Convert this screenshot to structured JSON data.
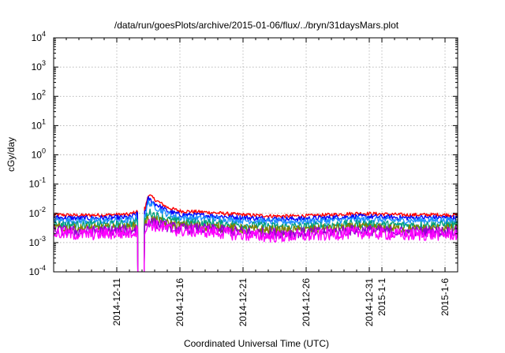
{
  "chart_data": {
    "type": "line",
    "title": "/data/run/goesPlots/archive/2015-01-06/flux/../bryn/31daysMars.plot",
    "xlabel": "Coordinated Universal Time (UTC)",
    "ylabel": "cGy/day",
    "yscale": "log",
    "ylim": [
      0.0001,
      10000
    ],
    "y_ticks": [
      {
        "value": 0.0001,
        "base": "10",
        "exp": "-4"
      },
      {
        "value": 0.001,
        "base": "10",
        "exp": "-3"
      },
      {
        "value": 0.01,
        "base": "10",
        "exp": "-2"
      },
      {
        "value": 0.1,
        "base": "10",
        "exp": "-1"
      },
      {
        "value": 1,
        "base": "10",
        "exp": "0"
      },
      {
        "value": 10,
        "base": "10",
        "exp": "1"
      },
      {
        "value": 100,
        "base": "10",
        "exp": "2"
      },
      {
        "value": 1000,
        "base": "10",
        "exp": "3"
      },
      {
        "value": 10000,
        "base": "10",
        "exp": "4"
      }
    ],
    "xlim": [
      "2014-12-06",
      "2015-01-07"
    ],
    "x_ticks": [
      {
        "date": "2014-12-11",
        "label": "2014-12-11"
      },
      {
        "date": "2014-12-16",
        "label": "2014-12-16"
      },
      {
        "date": "2014-12-21",
        "label": "2014-12-21"
      },
      {
        "date": "2014-12-26",
        "label": "2014-12-26"
      },
      {
        "date": "2014-12-31",
        "label": "2014-12-31"
      },
      {
        "date": "2015-01-01",
        "label": "2015-1-1"
      },
      {
        "date": "2015-01-06",
        "label": "2015-1-6"
      }
    ],
    "grid": true,
    "legend": "none",
    "data_gap": {
      "start": "2014-12-12T16:00",
      "end": "2014-12-13T04:00"
    },
    "series": [
      {
        "color": "#ff0000",
        "points": [
          [
            "2014-12-06",
            0.009
          ],
          [
            "2014-12-08",
            0.0085
          ],
          [
            "2014-12-10",
            0.0088
          ],
          [
            "2014-12-12",
            0.0092
          ],
          [
            "2014-12-13T06:00",
            0.015
          ],
          [
            "2014-12-13T12:00",
            0.045
          ],
          [
            "2014-12-14",
            0.03
          ],
          [
            "2014-12-15",
            0.016
          ],
          [
            "2014-12-16",
            0.012
          ],
          [
            "2014-12-18",
            0.011
          ],
          [
            "2014-12-20",
            0.0095
          ],
          [
            "2014-12-22",
            0.0085
          ],
          [
            "2014-12-24",
            0.008
          ],
          [
            "2014-12-26",
            0.0082
          ],
          [
            "2014-12-28",
            0.009
          ],
          [
            "2014-12-30",
            0.01
          ],
          [
            "2015-01-01",
            0.0095
          ],
          [
            "2015-01-03",
            0.0088
          ],
          [
            "2015-01-05",
            0.009
          ],
          [
            "2015-01-07",
            0.0088
          ]
        ]
      },
      {
        "color": "#0000ff",
        "points": [
          [
            "2014-12-06",
            0.0072
          ],
          [
            "2014-12-08",
            0.0068
          ],
          [
            "2014-12-10",
            0.007
          ],
          [
            "2014-12-12",
            0.0073
          ],
          [
            "2014-12-13T06:00",
            0.012
          ],
          [
            "2014-12-13T12:00",
            0.032
          ],
          [
            "2014-12-14",
            0.022
          ],
          [
            "2014-12-15",
            0.012
          ],
          [
            "2014-12-16",
            0.009
          ],
          [
            "2014-12-18",
            0.0085
          ],
          [
            "2014-12-20",
            0.0075
          ],
          [
            "2014-12-22",
            0.0068
          ],
          [
            "2014-12-24",
            0.0064
          ],
          [
            "2014-12-26",
            0.0066
          ],
          [
            "2014-12-28",
            0.0072
          ],
          [
            "2014-12-30",
            0.0078
          ],
          [
            "2015-01-01",
            0.0075
          ],
          [
            "2015-01-03",
            0.007
          ],
          [
            "2015-01-05",
            0.0072
          ],
          [
            "2015-01-07",
            0.007
          ]
        ]
      },
      {
        "color": "#1e90ff",
        "points": [
          [
            "2014-12-06",
            0.0058
          ],
          [
            "2014-12-08",
            0.0055
          ],
          [
            "2014-12-10",
            0.0056
          ],
          [
            "2014-12-12",
            0.0058
          ],
          [
            "2014-12-13T06:00",
            0.009
          ],
          [
            "2014-12-13T12:00",
            0.024
          ],
          [
            "2014-12-14",
            0.017
          ],
          [
            "2014-12-15",
            0.0095
          ],
          [
            "2014-12-16",
            0.0072
          ],
          [
            "2014-12-18",
            0.0068
          ],
          [
            "2014-12-20",
            0.006
          ],
          [
            "2014-12-22",
            0.0054
          ],
          [
            "2014-12-24",
            0.0051
          ],
          [
            "2014-12-26",
            0.0053
          ],
          [
            "2014-12-28",
            0.0057
          ],
          [
            "2014-12-30",
            0.0062
          ],
          [
            "2015-01-01",
            0.006
          ],
          [
            "2015-01-03",
            0.0056
          ],
          [
            "2015-01-05",
            0.0058
          ],
          [
            "2015-01-07",
            0.0056
          ]
        ]
      },
      {
        "color": "#00a080",
        "points": [
          [
            "2014-12-06",
            0.0042
          ],
          [
            "2014-12-08",
            0.004
          ],
          [
            "2014-12-10",
            0.0041
          ],
          [
            "2014-12-12",
            0.0043
          ],
          [
            "2014-12-13T06:00",
            0.006
          ],
          [
            "2014-12-13T12:00",
            0.011
          ],
          [
            "2014-12-14",
            0.009
          ],
          [
            "2014-12-15",
            0.0062
          ],
          [
            "2014-12-16",
            0.005
          ],
          [
            "2014-12-18",
            0.0047
          ],
          [
            "2014-12-20",
            0.0042
          ],
          [
            "2014-12-22",
            0.0038
          ],
          [
            "2014-12-24",
            0.0035
          ],
          [
            "2014-12-26",
            0.0036
          ],
          [
            "2014-12-28",
            0.004
          ],
          [
            "2014-12-30",
            0.0044
          ],
          [
            "2015-01-01",
            0.0042
          ],
          [
            "2015-01-03",
            0.0039
          ],
          [
            "2015-01-05",
            0.0041
          ],
          [
            "2015-01-07",
            0.004
          ]
        ]
      },
      {
        "color": "#808000",
        "points": [
          [
            "2014-12-06",
            0.0032
          ],
          [
            "2014-12-08",
            0.003
          ],
          [
            "2014-12-10",
            0.0031
          ],
          [
            "2014-12-12",
            0.0032
          ],
          [
            "2014-12-13T06:00",
            0.0045
          ],
          [
            "2014-12-13T12:00",
            0.0065
          ],
          [
            "2014-12-14",
            0.0058
          ],
          [
            "2014-12-15",
            0.0045
          ],
          [
            "2014-12-16",
            0.0038
          ],
          [
            "2014-12-18",
            0.0036
          ],
          [
            "2014-12-20",
            0.0031
          ],
          [
            "2014-12-22",
            0.0028
          ],
          [
            "2014-12-24",
            0.0026
          ],
          [
            "2014-12-26",
            0.0027
          ],
          [
            "2014-12-28",
            0.003
          ],
          [
            "2014-12-30",
            0.0033
          ],
          [
            "2015-01-01",
            0.0031
          ],
          [
            "2015-01-03",
            0.0029
          ],
          [
            "2015-01-05",
            0.003
          ],
          [
            "2015-01-07",
            0.003
          ]
        ]
      },
      {
        "color": "#9400d3",
        "points": [
          [
            "2014-12-06",
            0.0026
          ],
          [
            "2014-12-08",
            0.0024
          ],
          [
            "2014-12-10",
            0.0025
          ],
          [
            "2014-12-12",
            0.0026
          ],
          [
            "2014-12-13T06:00",
            0.0036
          ],
          [
            "2014-12-13T12:00",
            0.0052
          ],
          [
            "2014-12-14",
            0.0046
          ],
          [
            "2014-12-15",
            0.0036
          ],
          [
            "2014-12-16",
            0.003
          ],
          [
            "2014-12-18",
            0.0029
          ],
          [
            "2014-12-20",
            0.0025
          ],
          [
            "2014-12-22",
            0.0022
          ],
          [
            "2014-12-24",
            0.0021
          ],
          [
            "2014-12-26",
            0.0022
          ],
          [
            "2014-12-28",
            0.0024
          ],
          [
            "2014-12-30",
            0.0027
          ],
          [
            "2015-01-01",
            0.0025
          ],
          [
            "2015-01-03",
            0.0023
          ],
          [
            "2015-01-05",
            0.0024
          ],
          [
            "2015-01-07",
            0.0024
          ]
        ]
      },
      {
        "color": "#ff00ff",
        "points": [
          [
            "2014-12-06",
            0.0021
          ],
          [
            "2014-12-08",
            0.0019
          ],
          [
            "2014-12-10",
            0.002
          ],
          [
            "2014-12-12",
            0.0021
          ],
          [
            "2014-12-13T06:00",
            0.003
          ],
          [
            "2014-12-13T12:00",
            0.0044
          ],
          [
            "2014-12-14",
            0.0038
          ],
          [
            "2014-12-15",
            0.003
          ],
          [
            "2014-12-16",
            0.0025
          ],
          [
            "2014-12-18",
            0.0024
          ],
          [
            "2014-12-20",
            0.002
          ],
          [
            "2014-12-22",
            0.0017
          ],
          [
            "2014-12-24",
            0.0016
          ],
          [
            "2014-12-26",
            0.0017
          ],
          [
            "2014-12-28",
            0.0019
          ],
          [
            "2014-12-30",
            0.0022
          ],
          [
            "2015-01-01",
            0.002
          ],
          [
            "2015-01-03",
            0.0018
          ],
          [
            "2015-01-05",
            0.0019
          ],
          [
            "2015-01-07",
            0.0019
          ]
        ]
      }
    ]
  }
}
